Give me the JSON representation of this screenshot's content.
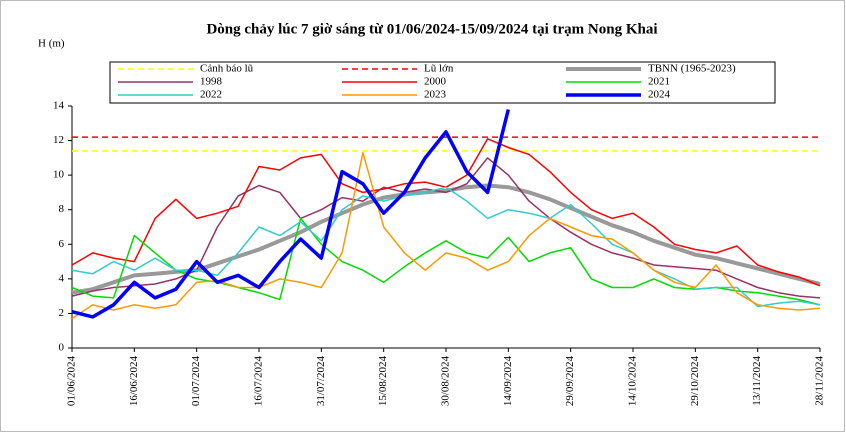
{
  "chart_data": {
    "type": "line",
    "title": "Dòng chảy lúc 7 giờ sáng từ 01/06/2024-15/09/2024 tại trạm Nong Khai",
    "y_label": "H (m)",
    "x": [
      "01/06/2024",
      "06/06/2024",
      "11/06/2024",
      "16/06/2024",
      "21/06/2024",
      "26/06/2024",
      "01/07/2024",
      "06/07/2024",
      "11/07/2024",
      "16/07/2024",
      "21/07/2024",
      "26/07/2024",
      "31/07/2024",
      "05/08/2024",
      "10/08/2024",
      "15/08/2024",
      "20/08/2024",
      "25/08/2024",
      "30/08/2024",
      "04/09/2024",
      "09/09/2024",
      "14/09/2024",
      "19/09/2024",
      "24/09/2024",
      "29/09/2024",
      "04/10/2024",
      "09/10/2024",
      "14/10/2024",
      "19/10/2024",
      "24/10/2024",
      "29/10/2024",
      "03/11/2024",
      "08/11/2024",
      "13/11/2024",
      "18/11/2024",
      "23/11/2024",
      "28/11/2024"
    ],
    "xticks": [
      "01/06/2024",
      "16/06/2024",
      "01/07/2024",
      "16/07/2024",
      "31/07/2024",
      "15/08/2024",
      "30/08/2024",
      "14/09/2024",
      "29/09/2024",
      "14/10/2024",
      "29/10/2024",
      "13/11/2024",
      "28/11/2024"
    ],
    "ylim": [
      0,
      14
    ],
    "yticks": [
      0,
      2,
      4,
      6,
      8,
      10,
      12,
      14
    ],
    "series": [
      {
        "name": "Cảnh báo lũ",
        "color": "#ffff00",
        "dashed": true,
        "level": 11.4
      },
      {
        "name": "Lũ lớn",
        "color": "#ff0000",
        "dashed": true,
        "level": 12.2
      },
      {
        "name": "TBNN (1965-2023)",
        "color": "#999999",
        "width": 4,
        "values": [
          3.2,
          3.4,
          3.8,
          4.2,
          4.3,
          4.4,
          4.5,
          4.9,
          5.3,
          5.7,
          6.2,
          6.7,
          7.3,
          7.8,
          8.3,
          8.7,
          8.9,
          9.0,
          9.1,
          9.3,
          9.4,
          9.3,
          9.0,
          8.6,
          8.1,
          7.6,
          7.1,
          6.7,
          6.2,
          5.8,
          5.4,
          5.2,
          4.9,
          4.6,
          4.3,
          4.0,
          3.7
        ]
      },
      {
        "name": "1998",
        "color": "#993366",
        "values": [
          3.0,
          3.3,
          3.5,
          3.6,
          3.7,
          4.0,
          4.5,
          7.0,
          8.8,
          9.4,
          9.0,
          7.5,
          8.0,
          8.7,
          8.5,
          9.3,
          9.0,
          9.2,
          9.0,
          9.5,
          11.0,
          10.0,
          8.5,
          7.5,
          6.7,
          6.0,
          5.5,
          5.2,
          4.8,
          4.7,
          4.6,
          4.5,
          4.0,
          3.5,
          3.2,
          3.0,
          2.9
        ]
      },
      {
        "name": "2000",
        "color": "#ff0000",
        "values": [
          4.8,
          5.5,
          5.2,
          5.0,
          7.5,
          8.6,
          7.5,
          7.8,
          8.2,
          10.5,
          10.3,
          11.0,
          11.2,
          9.5,
          9.0,
          9.2,
          9.5,
          9.6,
          9.3,
          10.0,
          12.1,
          11.6,
          11.2,
          10.2,
          9.0,
          8.0,
          7.5,
          7.8,
          7.0,
          6.0,
          5.7,
          5.5,
          5.9,
          4.8,
          4.4,
          4.1,
          3.6
        ]
      },
      {
        "name": "2021",
        "color": "#00dd00",
        "values": [
          3.5,
          3.0,
          2.9,
          6.5,
          5.5,
          4.5,
          4.0,
          3.8,
          3.5,
          3.2,
          2.8,
          7.5,
          6.0,
          5.0,
          4.5,
          3.8,
          4.7,
          5.5,
          6.2,
          5.5,
          5.2,
          6.4,
          5.0,
          5.5,
          5.8,
          4.0,
          3.5,
          3.5,
          4.0,
          3.5,
          3.4,
          3.5,
          3.3,
          3.2,
          3.0,
          2.8,
          2.5
        ]
      },
      {
        "name": "2022",
        "color": "#33cccc",
        "values": [
          4.5,
          4.3,
          5.0,
          4.5,
          5.2,
          4.5,
          4.5,
          4.2,
          5.5,
          7.0,
          6.5,
          7.3,
          6.2,
          8.0,
          8.8,
          8.5,
          8.8,
          9.0,
          9.3,
          8.5,
          7.5,
          8.0,
          7.8,
          7.5,
          8.3,
          7.2,
          6.0,
          5.5,
          4.5,
          4.0,
          3.4,
          3.5,
          3.5,
          2.4,
          2.6,
          2.7,
          2.5
        ]
      },
      {
        "name": "2023",
        "color": "#ff9900",
        "values": [
          1.7,
          2.5,
          2.2,
          2.5,
          2.3,
          2.5,
          3.8,
          3.9,
          3.5,
          3.5,
          4.0,
          3.8,
          3.5,
          5.5,
          11.3,
          7.0,
          5.5,
          4.5,
          5.5,
          5.2,
          4.5,
          5.0,
          6.5,
          7.5,
          7.0,
          6.5,
          6.3,
          5.5,
          4.5,
          3.8,
          3.5,
          4.8,
          3.2,
          2.5,
          2.3,
          2.2,
          2.3
        ]
      },
      {
        "name": "2024",
        "color": "#0000ff",
        "width": 3.5,
        "values": [
          2.1,
          1.8,
          2.5,
          3.8,
          2.9,
          3.4,
          5.0,
          3.8,
          4.2,
          3.5,
          5.0,
          6.3,
          5.2,
          10.2,
          9.5,
          7.8,
          9.0,
          11.0,
          12.5,
          10.2,
          9.0,
          13.8,
          null,
          null,
          null,
          null,
          null,
          null,
          null,
          null,
          null,
          null,
          null,
          null,
          null,
          null,
          null
        ]
      }
    ]
  }
}
